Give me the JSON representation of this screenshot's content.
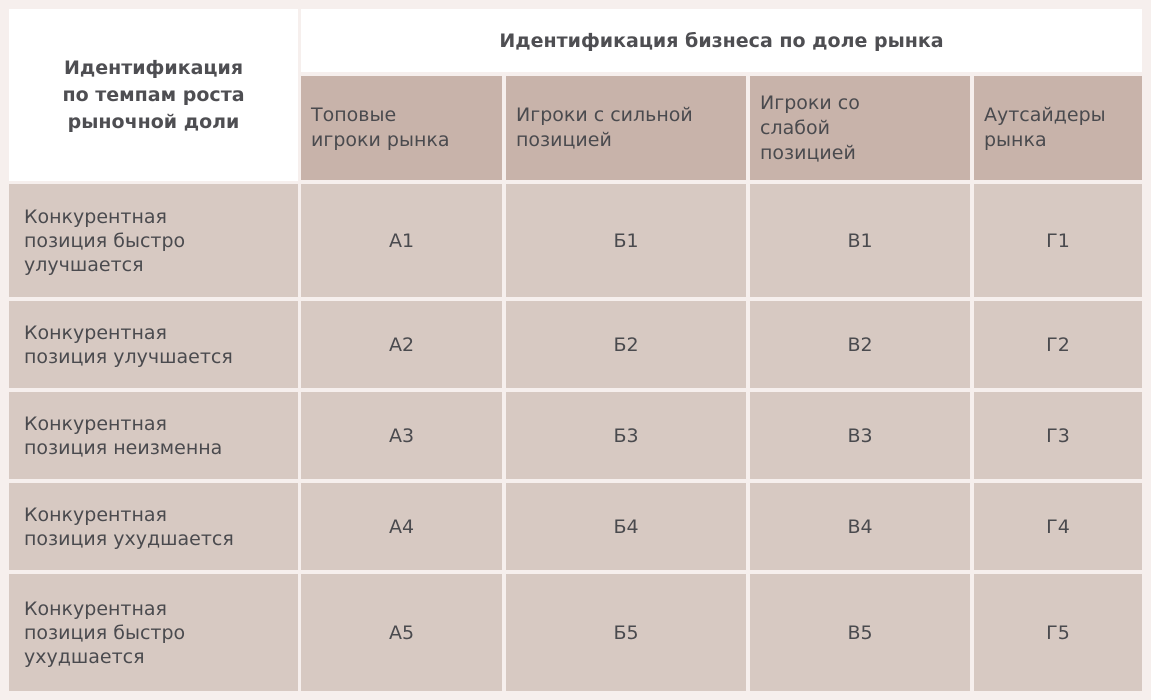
{
  "table": {
    "corner_label": "Идентификация\nпо темпам роста\nрыночной доли",
    "group_header": "Идентификация бизнеса по доле рынка",
    "columns": [
      "Топовые\nигроки рынка",
      "Игроки с сильной\nпозицией",
      "Игроки со\nслабой\nпозицией",
      "Аутсайдеры\nрынка"
    ],
    "rows": [
      {
        "label": "Конкурентная\nпозиция быстро\nулучшается",
        "cells": [
          "А1",
          "Б1",
          "В1",
          "Г1"
        ]
      },
      {
        "label": "Конкурентная\nпозиция улучшается",
        "cells": [
          "А2",
          "Б2",
          "В2",
          "Г2"
        ]
      },
      {
        "label": "Конкурентная\nпозиция неизменна",
        "cells": [
          "А3",
          "Б3",
          "В3",
          "Г3"
        ]
      },
      {
        "label": "Конкурентная\nпозиция ухудшается",
        "cells": [
          "А4",
          "Б4",
          "В4",
          "Г4"
        ]
      },
      {
        "label": "Конкурентная\nпозиция быстро\nухудшается",
        "cells": [
          "А5",
          "Б5",
          "В5",
          "Г5"
        ]
      }
    ]
  }
}
